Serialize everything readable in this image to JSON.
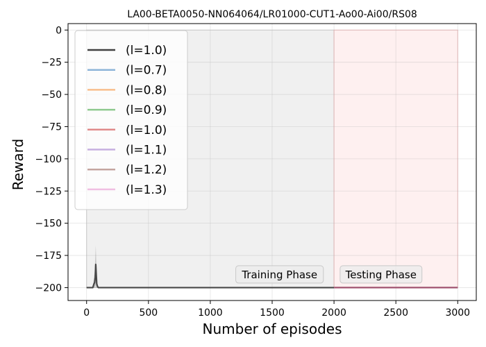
{
  "chart_data": {
    "type": "line",
    "title": "LA00-BETA0050-NN064064/LR01000-CUT1-Ao00-Ai00/RS08",
    "xlabel": "Number of episodes",
    "ylabel": "Reward",
    "xlim": [
      -150,
      3150
    ],
    "ylim": [
      -210,
      5
    ],
    "xticks": [
      0,
      500,
      1000,
      1500,
      2000,
      2500,
      3000
    ],
    "yticks": [
      0,
      -25,
      -50,
      -75,
      -100,
      -125,
      -150,
      -175,
      -200
    ],
    "xtick_labels": [
      "0",
      "500",
      "1000",
      "1500",
      "2000",
      "2500",
      "3000"
    ],
    "ytick_labels": [
      "0",
      "−25",
      "−50",
      "−75",
      "−100",
      "−125",
      "−150",
      "−175",
      "−200"
    ],
    "grid": true,
    "legend_position": "top-left",
    "regions": [
      {
        "label": "Training Phase",
        "x_start": 0,
        "x_end": 2000,
        "y_start": -200,
        "y_end": 0,
        "color": "#e8e8e8"
      },
      {
        "label": "Testing Phase",
        "x_start": 2000,
        "x_end": 3000,
        "y_start": -200,
        "y_end": 0,
        "color": "#fde8e8"
      }
    ],
    "series": [
      {
        "name": "(l=1.0)",
        "color": "#404040",
        "phase": "training",
        "x": [
          0,
          50,
          60,
          65,
          70,
          74,
          78,
          82,
          88,
          95,
          110,
          2000
        ],
        "y": [
          -200,
          -200,
          -197,
          -196,
          -192,
          -182,
          -190,
          -197,
          -199,
          -200,
          -200,
          -200
        ],
        "band_upper": [
          -200,
          -200,
          -192,
          -188,
          -178,
          -167,
          -180,
          -193,
          -198,
          -200,
          -200,
          -200
        ],
        "band_lower": [
          -200,
          -200,
          -200,
          -200,
          -200,
          -198,
          -200,
          -200,
          -200,
          -200,
          -200,
          -200
        ]
      },
      {
        "name": "(l=0.7)",
        "color": "#8cb4d8",
        "phase": "testing",
        "x": [
          2000,
          3000
        ],
        "y": [
          -200,
          -200
        ]
      },
      {
        "name": "(l=0.8)",
        "color": "#f8be8c",
        "phase": "testing",
        "x": [
          2000,
          3000
        ],
        "y": [
          -200,
          -200
        ]
      },
      {
        "name": "(l=0.9)",
        "color": "#8ec98e",
        "phase": "testing",
        "x": [
          2000,
          3000
        ],
        "y": [
          -200,
          -200
        ]
      },
      {
        "name": "(l=1.0)",
        "color": "#e08a8a",
        "phase": "testing",
        "x": [
          2000,
          3000
        ],
        "y": [
          -200,
          -200
        ]
      },
      {
        "name": "(l=1.1)",
        "color": "#c6aee0",
        "phase": "testing",
        "x": [
          2000,
          3000
        ],
        "y": [
          -200,
          -200
        ]
      },
      {
        "name": "(l=1.2)",
        "color": "#c4a59f",
        "phase": "testing",
        "x": [
          2000,
          3000
        ],
        "y": [
          -200,
          -200
        ]
      },
      {
        "name": "(l=1.3)",
        "color": "#f0bfe2",
        "phase": "testing",
        "x": [
          2000,
          3000
        ],
        "y": [
          -200,
          -200
        ]
      }
    ],
    "testing_overlay_color": "#a0526f"
  }
}
